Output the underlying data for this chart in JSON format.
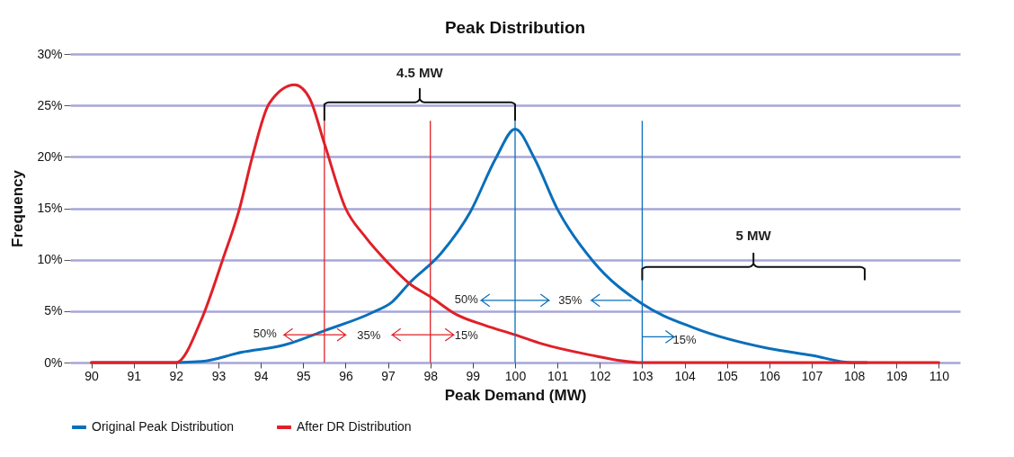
{
  "chart_data": {
    "type": "line",
    "title": "Peak Distribution",
    "xlabel": "Peak Demand (MW)",
    "ylabel": "Frequency",
    "xlim": [
      89.5,
      110.5
    ],
    "xticks": [
      90,
      91,
      92,
      93,
      94,
      95,
      96,
      97,
      98,
      99,
      100,
      101,
      102,
      103,
      104,
      105,
      106,
      107,
      108,
      109,
      110
    ],
    "ylim": [
      0,
      30
    ],
    "yticks": [
      {
        "value": 0,
        "label": "0%"
      },
      {
        "value": 5,
        "label": "5%"
      },
      {
        "value": 10,
        "label": "10%"
      },
      {
        "value": 15,
        "label": "15%"
      },
      {
        "value": 20,
        "label": "20%"
      },
      {
        "value": 25,
        "label": "25%"
      },
      {
        "value": 30,
        "label": "30%"
      }
    ],
    "grid": "y",
    "legend": "bottom",
    "line_style": "solid",
    "marker": "none",
    "series": [
      {
        "name": "Original Peak Distribution",
        "color": "#0a6fba",
        "x": [
          90,
          92,
          92.6,
          93.55,
          94.55,
          95.5,
          96.65,
          97.1,
          97.5,
          98.25,
          98.95,
          99.55,
          100,
          100.45,
          101,
          101.85,
          103,
          104.2,
          105.95,
          107,
          107.95,
          108.3
        ],
        "values": [
          0,
          0,
          0.1,
          1.0,
          1.7,
          3.1,
          4.9,
          5.9,
          7.7,
          10.6,
          14.7,
          19.9,
          22.7,
          19.9,
          14.9,
          9.8,
          5.7,
          3.4,
          1.4,
          0.7,
          0,
          0
        ]
      },
      {
        "name": "After DR Distribution",
        "color": "#e02027",
        "x": [
          90,
          92,
          92.6,
          93.1,
          93.5,
          93.8,
          94.2,
          94.8,
          95.15,
          95.5,
          96,
          96.45,
          97,
          97.5,
          98,
          98.6,
          99.3,
          100,
          100.65,
          101.7,
          103,
          110
        ],
        "values": [
          0,
          0,
          4.2,
          10,
          15,
          20,
          25.2,
          27,
          25.7,
          21.3,
          15,
          12.3,
          9.7,
          7.7,
          6.4,
          4.7,
          3.6,
          2.7,
          1.8,
          0.8,
          0,
          0
        ]
      }
    ],
    "ref_lines": [
      {
        "axis": "x",
        "value": 95.5,
        "color": "#e02027"
      },
      {
        "axis": "x",
        "value": 98,
        "color": "#e02027"
      },
      {
        "axis": "x",
        "value": 100,
        "color": "#0a6fba"
      },
      {
        "axis": "x",
        "value": 103,
        "color": "#0a6fba"
      }
    ],
    "annotations": [
      "4.5 MW",
      "5 MW",
      "50%",
      "35%",
      "15%",
      "50%",
      "35%",
      "15%"
    ]
  }
}
